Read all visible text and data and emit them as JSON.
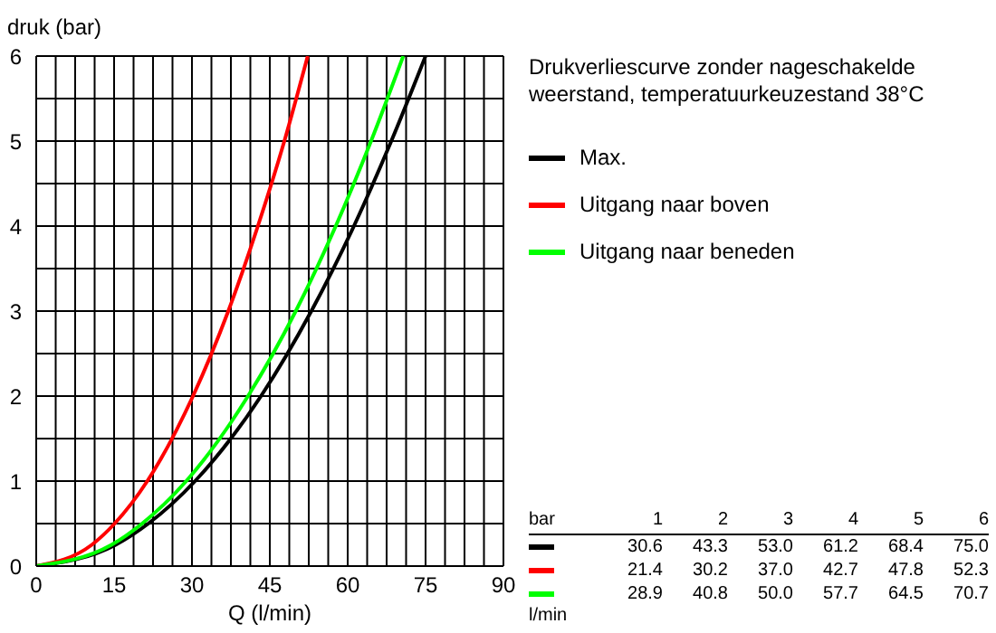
{
  "chart_data": {
    "type": "line",
    "legend_title": "Drukverliescurve zonder nageschakelde weerstand, temperatuurkeuzestand 38°C",
    "xlabel": "Q (l/min)",
    "ylabel": "druk (bar)",
    "xlim": [
      0,
      90
    ],
    "ylim": [
      0,
      6
    ],
    "xticks": [
      0,
      {
        "value": 3.75,
        "label": null
      },
      {
        "value": 7.5,
        "label": null
      },
      {
        "value": 11.25,
        "label": null
      },
      15,
      {
        "value": 18.75,
        "label": null
      },
      {
        "value": 22.5,
        "label": null
      },
      {
        "value": 26.25,
        "label": null
      },
      30,
      {
        "value": 33.75,
        "label": null
      },
      {
        "value": 37.5,
        "label": null
      },
      {
        "value": 41.25,
        "label": null
      },
      45,
      {
        "value": 48.75,
        "label": null
      },
      {
        "value": 52.5,
        "label": null
      },
      {
        "value": 56.25,
        "label": null
      },
      60,
      {
        "value": 63.75,
        "label": null
      },
      {
        "value": 67.5,
        "label": null
      },
      {
        "value": 71.25,
        "label": null
      },
      75,
      {
        "value": 78.75,
        "label": null
      },
      {
        "value": 82.5,
        "label": null
      },
      {
        "value": 86.25,
        "label": null
      },
      90
    ],
    "yticks": [
      0,
      {
        "value": 0.5,
        "label": null
      },
      1,
      {
        "value": 1.5,
        "label": null
      },
      2,
      {
        "value": 2.5,
        "label": null
      },
      3,
      {
        "value": 3.5,
        "label": null
      },
      4,
      {
        "value": 4.5,
        "label": null
      },
      5,
      {
        "value": 5.5,
        "label": null
      },
      6
    ],
    "grid": true,
    "legend": "top right",
    "marker": "none",
    "line_style": "solid",
    "annotations": [
      "bar",
      "1",
      "2",
      "3",
      "4",
      "5",
      "6",
      "30.6",
      "43.3",
      "53.0",
      "61.2",
      "68.4",
      "75.0",
      "21.4",
      "30.2",
      "37.0",
      "42.7",
      "47.8",
      "52.3",
      "28.9",
      "40.8",
      "50.0",
      "57.7",
      "64.5",
      "70.7",
      "l/min"
    ],
    "series": [
      {
        "name": "Max.",
        "color": "#000000",
        "x": [
          0,
          15.3,
          21.6,
          30.6,
          43.3,
          53.0,
          61.2,
          68.4,
          75.0
        ],
        "values": [
          0,
          0.25,
          0.5,
          1,
          2,
          3,
          4,
          5,
          6
        ]
      },
      {
        "name": "Uitgang naar boven",
        "color": "#ff0000",
        "x": [
          0,
          10.7,
          15.1,
          21.4,
          30.2,
          37.0,
          42.7,
          47.8,
          52.3
        ],
        "values": [
          0,
          0.25,
          0.5,
          1,
          2,
          3,
          4,
          5,
          6
        ]
      },
      {
        "name": "Uitgang naar beneden",
        "color": "#00ff00",
        "x": [
          0,
          14.5,
          20.4,
          28.9,
          40.8,
          50.0,
          57.7,
          64.5,
          70.7
        ],
        "values": [
          0,
          0.25,
          0.5,
          1,
          2,
          3,
          4,
          5,
          6
        ]
      }
    ]
  }
}
